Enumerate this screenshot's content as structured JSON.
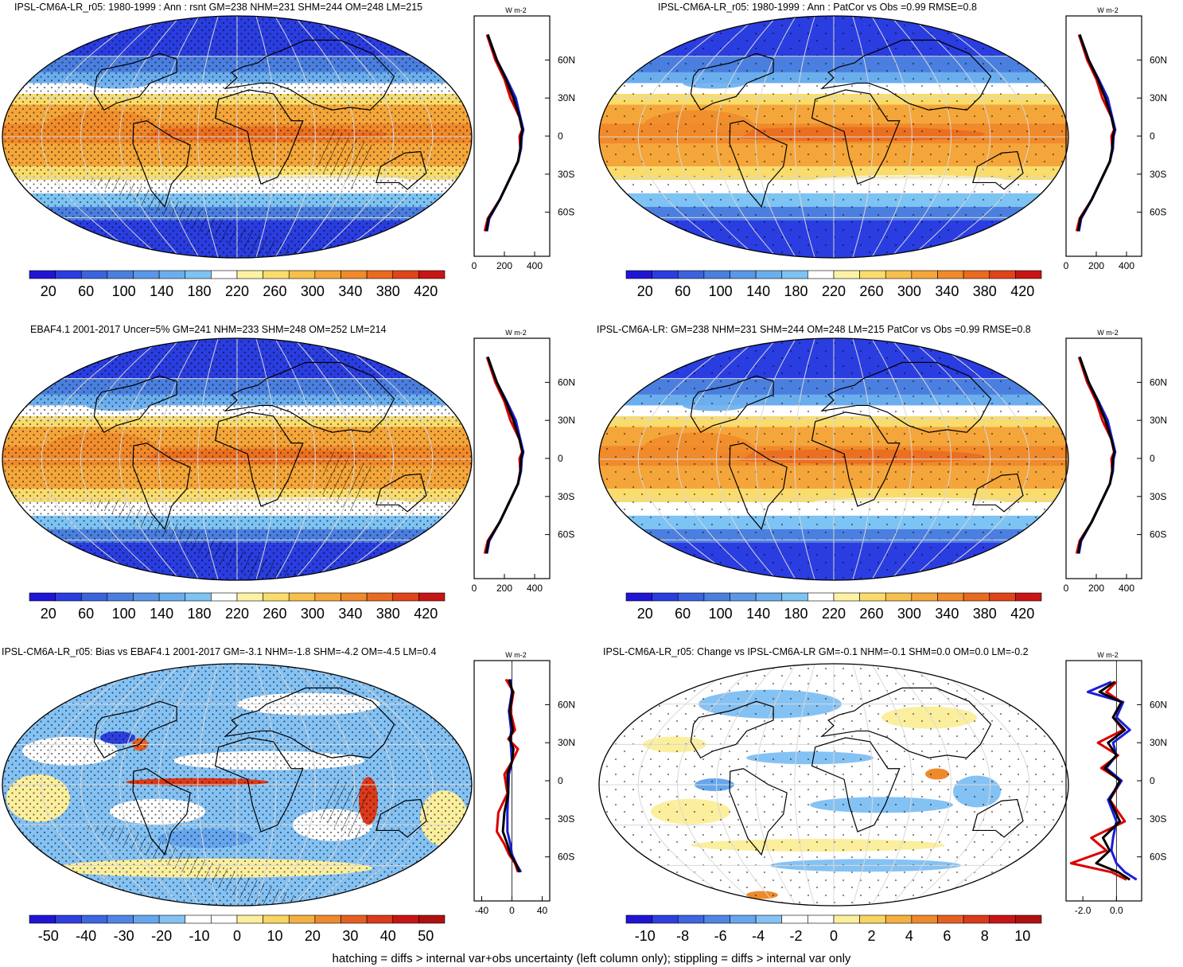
{
  "footer": "hatching = diffs > internal var+obs uncertainty (left column only); stippling = diffs > internal var only",
  "chart_data": [
    {
      "type": "heatmap",
      "id": "p1",
      "title": "IPSL-CM6A-LR_r05: 1980-1999 : Ann : rsnt GM=238 NHM=231 SHM=244 OM=248 LM=215",
      "field": "absolute",
      "colorbar": {
        "ticks": [
          "20",
          "60",
          "100",
          "140",
          "180",
          "220",
          "260",
          "300",
          "340",
          "380",
          "420"
        ],
        "range": [
          0,
          440
        ]
      },
      "zonal_mean": {
        "unit": "W m-2",
        "xticks": [
          "0",
          "200",
          "400"
        ],
        "xlim": [
          0,
          500
        ],
        "yticks": [
          "60N",
          "30N",
          "0",
          "30S",
          "60S"
        ],
        "series": [
          {
            "color": "#d90000",
            "x": [
              85,
              140,
              200,
              240,
              300,
              318,
              300,
              305,
              290,
              230,
              170,
              90,
              70
            ],
            "y": [
              80,
              60,
              45,
              30,
              15,
              5,
              0,
              -10,
              -20,
              -35,
              -50,
              -65,
              -75
            ]
          },
          {
            "color": "#1c1cd8",
            "x": [
              90,
              150,
              215,
              275,
              305,
              325,
              315,
              310,
              290,
              230,
              170,
              100,
              85
            ],
            "y": [
              80,
              60,
              45,
              30,
              15,
              5,
              0,
              -10,
              -20,
              -35,
              -50,
              -65,
              -75
            ]
          },
          {
            "color": "#000000",
            "x": [
              90,
              150,
              210,
              260,
              300,
              320,
              310,
              305,
              290,
              230,
              170,
              95,
              80
            ],
            "y": [
              80,
              60,
              45,
              30,
              15,
              5,
              0,
              -10,
              -20,
              -35,
              -50,
              -65,
              -75
            ]
          }
        ]
      }
    },
    {
      "type": "heatmap",
      "id": "p2",
      "title": "IPSL-CM6A-LR_r05: 1980-1999 : Ann : PatCor vs Obs =0.99 RMSE=0.8",
      "field": "absolute",
      "colorbar": {
        "ticks": [
          "20",
          "60",
          "100",
          "140",
          "180",
          "220",
          "260",
          "300",
          "340",
          "380",
          "420"
        ],
        "range": [
          0,
          440
        ]
      },
      "zonal_mean": {
        "unit": "W m-2",
        "xticks": [
          "0",
          "200",
          "400"
        ],
        "xlim": [
          0,
          500
        ],
        "yticks": [
          "60N",
          "30N",
          "0",
          "30S",
          "60S"
        ],
        "series": [
          {
            "color": "#d90000",
            "x": [
              85,
              140,
              200,
              240,
              300,
              318,
              300,
              305,
              290,
              230,
              170,
              90,
              70
            ],
            "y": [
              80,
              60,
              45,
              30,
              15,
              5,
              0,
              -10,
              -20,
              -35,
              -50,
              -65,
              -75
            ]
          },
          {
            "color": "#1c1cd8",
            "x": [
              90,
              150,
              215,
              275,
              305,
              325,
              315,
              310,
              290,
              230,
              170,
              100,
              85
            ],
            "y": [
              80,
              60,
              45,
              30,
              15,
              5,
              0,
              -10,
              -20,
              -35,
              -50,
              -65,
              -75
            ]
          },
          {
            "color": "#000000",
            "x": [
              90,
              150,
              210,
              260,
              300,
              320,
              310,
              305,
              290,
              230,
              170,
              95,
              80
            ],
            "y": [
              80,
              60,
              45,
              30,
              15,
              5,
              0,
              -10,
              -20,
              -35,
              -50,
              -65,
              -75
            ]
          }
        ]
      }
    },
    {
      "type": "heatmap",
      "id": "p3",
      "title": "EBAF4.1 2001-2017 Uncer=5% GM=241 NHM=233 SHM=248 OM=252 LM=214",
      "field": "absolute",
      "colorbar": {
        "ticks": [
          "20",
          "60",
          "100",
          "140",
          "180",
          "220",
          "260",
          "300",
          "340",
          "380",
          "420"
        ],
        "range": [
          0,
          440
        ]
      },
      "zonal_mean": {
        "unit": "W m-2",
        "xticks": [
          "0",
          "200",
          "400"
        ],
        "xlim": [
          0,
          500
        ],
        "yticks": [
          "60N",
          "30N",
          "0",
          "30S",
          "60S"
        ],
        "series": [
          {
            "color": "#d90000",
            "x": [
              85,
              140,
              200,
              240,
              300,
              318,
              300,
              305,
              290,
              230,
              170,
              90,
              70
            ],
            "y": [
              80,
              60,
              45,
              30,
              15,
              5,
              0,
              -10,
              -20,
              -35,
              -50,
              -65,
              -75
            ]
          },
          {
            "color": "#1c1cd8",
            "x": [
              90,
              150,
              215,
              275,
              305,
              325,
              315,
              310,
              290,
              230,
              170,
              100,
              85
            ],
            "y": [
              80,
              60,
              45,
              30,
              15,
              5,
              0,
              -10,
              -20,
              -35,
              -50,
              -65,
              -75
            ]
          },
          {
            "color": "#000000",
            "x": [
              90,
              150,
              210,
              260,
              300,
              320,
              310,
              305,
              290,
              230,
              170,
              95,
              80
            ],
            "y": [
              80,
              60,
              45,
              30,
              15,
              5,
              0,
              -10,
              -20,
              -35,
              -50,
              -65,
              -75
            ]
          }
        ]
      }
    },
    {
      "type": "heatmap",
      "id": "p4",
      "title": "IPSL-CM6A-LR: GM=238 NHM=231 SHM=244 OM=248 LM=215 PatCor vs Obs =0.99 RMSE=0.8",
      "field": "absolute",
      "colorbar": {
        "ticks": [
          "20",
          "60",
          "100",
          "140",
          "180",
          "220",
          "260",
          "300",
          "340",
          "380",
          "420"
        ],
        "range": [
          0,
          440
        ]
      },
      "zonal_mean": {
        "unit": "W m-2",
        "xticks": [
          "0",
          "200",
          "400"
        ],
        "xlim": [
          0,
          500
        ],
        "yticks": [
          "60N",
          "30N",
          "0",
          "30S",
          "60S"
        ],
        "series": [
          {
            "color": "#d90000",
            "x": [
              85,
              140,
              200,
              240,
              300,
              318,
              300,
              305,
              290,
              230,
              170,
              90,
              70
            ],
            "y": [
              80,
              60,
              45,
              30,
              15,
              5,
              0,
              -10,
              -20,
              -35,
              -50,
              -65,
              -75
            ]
          },
          {
            "color": "#1c1cd8",
            "x": [
              90,
              150,
              215,
              275,
              305,
              325,
              315,
              310,
              290,
              230,
              170,
              100,
              85
            ],
            "y": [
              80,
              60,
              45,
              30,
              15,
              5,
              0,
              -10,
              -20,
              -35,
              -50,
              -65,
              -75
            ]
          },
          {
            "color": "#000000",
            "x": [
              90,
              150,
              210,
              260,
              300,
              320,
              310,
              305,
              290,
              230,
              170,
              95,
              80
            ],
            "y": [
              80,
              60,
              45,
              30,
              15,
              5,
              0,
              -10,
              -20,
              -35,
              -50,
              -65,
              -75
            ]
          }
        ]
      }
    },
    {
      "type": "heatmap",
      "id": "p5",
      "title": "IPSL-CM6A-LR_r05: Bias vs EBAF4.1 2001-2017 GM=-3.1 NHM=-1.8 SHM=-4.2 OM=-4.5 LM=0.4",
      "field": "bias",
      "colorbar": {
        "ticks": [
          "-50",
          "-40",
          "-30",
          "-20",
          "-10",
          "0",
          "10",
          "20",
          "30",
          "40",
          "50"
        ],
        "range": [
          -55,
          55
        ]
      },
      "zonal_mean": {
        "unit": "W m-2",
        "xticks": [
          "-40",
          "0",
          "40"
        ],
        "xlim": [
          -50,
          50
        ],
        "yticks": [
          "60N",
          "30N",
          "0",
          "30S",
          "60S"
        ],
        "series": [
          {
            "color": "#d90000",
            "x": [
              -8,
              2,
              -2,
              4,
              -5,
              8,
              0,
              -10,
              -6,
              -18,
              -20,
              -10,
              -4,
              4,
              8
            ],
            "y": [
              80,
              70,
              55,
              40,
              33,
              25,
              15,
              5,
              -10,
              -25,
              -40,
              -50,
              -58,
              -65,
              -72
            ]
          },
          {
            "color": "#1c1cd8",
            "x": [
              -2,
              0,
              -4,
              -1,
              -2,
              -1,
              0,
              -4,
              -5,
              -6,
              -6,
              -2,
              0,
              5,
              12
            ],
            "y": [
              80,
              70,
              55,
              40,
              33,
              25,
              15,
              5,
              -10,
              -25,
              -40,
              -50,
              -58,
              -65,
              -72
            ]
          },
          {
            "color": "#000000",
            "x": [
              -4,
              1,
              -3,
              1,
              -3,
              2,
              0,
              -6,
              -5,
              -10,
              -12,
              -6,
              -2,
              5,
              10
            ],
            "y": [
              80,
              70,
              55,
              40,
              33,
              25,
              15,
              5,
              -10,
              -25,
              -40,
              -50,
              -58,
              -65,
              -72
            ]
          }
        ]
      }
    },
    {
      "type": "heatmap",
      "id": "p6",
      "title": "IPSL-CM6A-LR_r05: Change vs IPSL-CM6A-LR GM=-0.1 NHM=-0.1 SHM=0.0 OM=0.0 LM=-0.2",
      "field": "change",
      "colorbar": {
        "ticks": [
          "-10",
          "-8",
          "-6",
          "-4",
          "-2",
          "0",
          "2",
          "4",
          "6",
          "8",
          "10"
        ],
        "range": [
          -11,
          11
        ]
      },
      "zonal_mean": {
        "unit": "W m-2",
        "xticks": [
          "-2.0",
          "0.0"
        ],
        "xlim": [
          -3.0,
          1.5
        ],
        "yticks": [
          "60N",
          "30N",
          "0",
          "30S",
          "60S"
        ],
        "series": [
          {
            "color": "#d90000",
            "x": [
              0.0,
              -0.6,
              0.3,
              -0.2,
              0.4,
              -1.1,
              0.1,
              -0.9,
              0.3,
              -0.4,
              0.5,
              -1.5,
              -0.6,
              -2.7,
              -0.3,
              0.6
            ],
            "y": [
              78,
              70,
              62,
              50,
              40,
              30,
              20,
              10,
              0,
              -15,
              -32,
              -45,
              -55,
              -65,
              -72,
              -78
            ]
          },
          {
            "color": "#1c1cd8",
            "x": [
              -0.3,
              -1.7,
              0.4,
              0.0,
              0.8,
              -0.2,
              0.0,
              -0.6,
              0.3,
              -0.5,
              0.0,
              -0.2,
              -0.3,
              0.0,
              0.5,
              1.2
            ],
            "y": [
              78,
              70,
              62,
              50,
              40,
              30,
              20,
              10,
              0,
              -15,
              -32,
              -45,
              -55,
              -65,
              -72,
              -78
            ]
          },
          {
            "color": "#000000",
            "x": [
              -0.1,
              -1.0,
              0.3,
              -0.2,
              0.5,
              -0.5,
              0.0,
              -0.7,
              0.2,
              -0.4,
              0.2,
              -0.8,
              -0.4,
              -1.2,
              0.1,
              0.8
            ],
            "y": [
              78,
              70,
              62,
              50,
              40,
              30,
              20,
              10,
              0,
              -15,
              -32,
              -45,
              -55,
              -65,
              -72,
              -78
            ]
          }
        ]
      }
    }
  ]
}
